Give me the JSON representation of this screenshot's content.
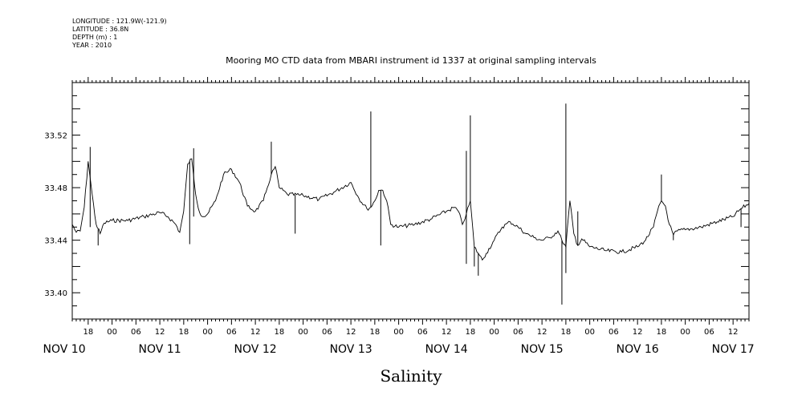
{
  "header": {
    "longitude": "LONGITUDE : 121.9W(-121.9)",
    "latitude": "LATITUDE : 36.8N",
    "depth": "DEPTH (m) : 1",
    "year": "YEAR : 2010"
  },
  "chart_data": {
    "type": "line",
    "title": "Mooring MO CTD data from MBARI instrument id 1337 at original sampling intervals",
    "xlabel": "Salinity",
    "ylabel": "",
    "ylim": [
      33.38,
      33.56
    ],
    "yticks": [
      33.4,
      33.44,
      33.48,
      33.52
    ],
    "ytick_labels": [
      "33.40",
      "33.44",
      "33.48",
      "33.52"
    ],
    "xlim": [
      "2010-11-10T14:00",
      "2010-11-17T16:00"
    ],
    "hour_labels": [
      "18",
      "00",
      "06",
      "12",
      "18",
      "00",
      "06",
      "12",
      "18",
      "00",
      "06",
      "12",
      "18",
      "00",
      "06",
      "12",
      "18",
      "00",
      "06",
      "12",
      "18",
      "00",
      "06",
      "12",
      "18",
      "00",
      "06",
      "12",
      "18",
      "00",
      "06",
      "12"
    ],
    "day_labels": [
      "NOV 10",
      "NOV 11",
      "NOV 12",
      "NOV 13",
      "NOV 14",
      "NOV 15",
      "NOV 16",
      "NOV 17"
    ],
    "grid": false,
    "series": [
      {
        "x": [
          "2010-11-10T14:00",
          "2010-11-10T15:00",
          "2010-11-10T16:00",
          "2010-11-10T17:00",
          "2010-11-10T18:00",
          "2010-11-10T19:00",
          "2010-11-10T20:00",
          "2010-11-10T21:00",
          "2010-11-10T22:00",
          "2010-11-11T00:00",
          "2010-11-11T04:00",
          "2010-11-11T08:00",
          "2010-11-11T12:00",
          "2010-11-11T14:00",
          "2010-11-11T16:00",
          "2010-11-11T17:00",
          "2010-11-11T18:00",
          "2010-11-11T19:00",
          "2010-11-11T20:00",
          "2010-11-11T21:00",
          "2010-11-11T22:00",
          "2010-11-11T23:00",
          "2010-11-12T00:00",
          "2010-11-12T02:00",
          "2010-11-12T04:00",
          "2010-11-12T06:00",
          "2010-11-12T08:00",
          "2010-11-12T10:00",
          "2010-11-12T12:00",
          "2010-11-12T14:00",
          "2010-11-12T15:00",
          "2010-11-12T16:00",
          "2010-11-12T17:00",
          "2010-11-12T18:00",
          "2010-11-12T20:00",
          "2010-11-13T00:00",
          "2010-11-13T04:00",
          "2010-11-13T08:00",
          "2010-11-13T12:00",
          "2010-11-13T14:00",
          "2010-11-13T16:00",
          "2010-11-13T17:00",
          "2010-11-13T18:00",
          "2010-11-13T19:00",
          "2010-11-13T20:00",
          "2010-11-13T21:00",
          "2010-11-13T22:00",
          "2010-11-14T00:00",
          "2010-11-14T04:00",
          "2010-11-14T08:00",
          "2010-11-14T12:00",
          "2010-11-14T14:00",
          "2010-11-14T15:00",
          "2010-11-14T16:00",
          "2010-11-14T17:00",
          "2010-11-14T18:00",
          "2010-11-14T19:00",
          "2010-11-14T20:00",
          "2010-11-14T21:00",
          "2010-11-14T22:00",
          "2010-11-15T00:00",
          "2010-11-15T02:00",
          "2010-11-15T04:00",
          "2010-11-15T06:00",
          "2010-11-15T08:00",
          "2010-11-15T10:00",
          "2010-11-15T12:00",
          "2010-11-15T14:00",
          "2010-11-15T16:00",
          "2010-11-15T17:00",
          "2010-11-15T18:00",
          "2010-11-15T19:00",
          "2010-11-15T20:00",
          "2010-11-15T21:00",
          "2010-11-15T22:00",
          "2010-11-16T00:00",
          "2010-11-16T04:00",
          "2010-11-16T08:00",
          "2010-11-16T12:00",
          "2010-11-16T14:00",
          "2010-11-16T16:00",
          "2010-11-16T17:00",
          "2010-11-16T18:00",
          "2010-11-16T19:00",
          "2010-11-16T20:00",
          "2010-11-16T21:00",
          "2010-11-16T22:00",
          "2010-11-17T00:00",
          "2010-11-17T04:00",
          "2010-11-17T08:00",
          "2010-11-17T12:00",
          "2010-11-17T14:00",
          "2010-11-17T16:00"
        ],
        "values": [
          33.452,
          33.446,
          33.447,
          33.465,
          33.5,
          33.475,
          33.452,
          33.445,
          33.453,
          33.455,
          33.455,
          33.458,
          33.461,
          33.458,
          33.452,
          33.446,
          33.462,
          33.498,
          33.502,
          33.475,
          33.461,
          33.458,
          33.46,
          33.47,
          33.49,
          33.494,
          33.484,
          33.466,
          33.462,
          33.47,
          33.48,
          33.49,
          33.496,
          33.48,
          33.475,
          33.474,
          33.471,
          33.477,
          33.484,
          33.472,
          33.464,
          33.465,
          33.47,
          33.478,
          33.478,
          33.47,
          33.452,
          33.45,
          33.452,
          33.456,
          33.462,
          33.465,
          33.462,
          33.452,
          33.46,
          33.47,
          33.435,
          33.43,
          33.425,
          33.43,
          33.44,
          33.45,
          33.454,
          33.45,
          33.445,
          33.442,
          33.44,
          33.442,
          33.447,
          33.44,
          33.435,
          33.47,
          33.445,
          33.436,
          33.441,
          33.435,
          33.432,
          33.431,
          33.435,
          33.44,
          33.45,
          33.462,
          33.47,
          33.466,
          33.452,
          33.444,
          33.447,
          33.448,
          33.45,
          33.454,
          33.458,
          33.464,
          33.468
        ]
      }
    ],
    "spikes": [
      {
        "x": "2010-11-10T18:30",
        "values": [
          33.511,
          33.45
        ]
      },
      {
        "x": "2010-11-10T20:30",
        "values": [
          33.436
        ]
      },
      {
        "x": "2010-11-11T19:30",
        "values": [
          33.437
        ]
      },
      {
        "x": "2010-11-11T20:30",
        "values": [
          33.51,
          33.458
        ]
      },
      {
        "x": "2010-11-12T16:00",
        "values": [
          33.515
        ]
      },
      {
        "x": "2010-11-12T22:00",
        "values": [
          33.445
        ]
      },
      {
        "x": "2010-11-13T17:00",
        "values": [
          33.538
        ]
      },
      {
        "x": "2010-11-13T19:30",
        "values": [
          33.436
        ]
      },
      {
        "x": "2010-11-14T17:00",
        "values": [
          33.508,
          33.422
        ]
      },
      {
        "x": "2010-11-14T18:00",
        "values": [
          33.535
        ]
      },
      {
        "x": "2010-11-14T19:00",
        "values": [
          33.42
        ]
      },
      {
        "x": "2010-11-14T20:00",
        "values": [
          33.413
        ]
      },
      {
        "x": "2010-11-15T17:00",
        "values": [
          33.391
        ]
      },
      {
        "x": "2010-11-15T18:00",
        "values": [
          33.544,
          33.415
        ]
      },
      {
        "x": "2010-11-15T21:00",
        "values": [
          33.462
        ]
      },
      {
        "x": "2010-11-16T18:00",
        "values": [
          33.49
        ]
      },
      {
        "x": "2010-11-16T21:00",
        "values": [
          33.44
        ]
      },
      {
        "x": "2010-11-17T14:00",
        "values": [
          33.45
        ]
      }
    ]
  }
}
